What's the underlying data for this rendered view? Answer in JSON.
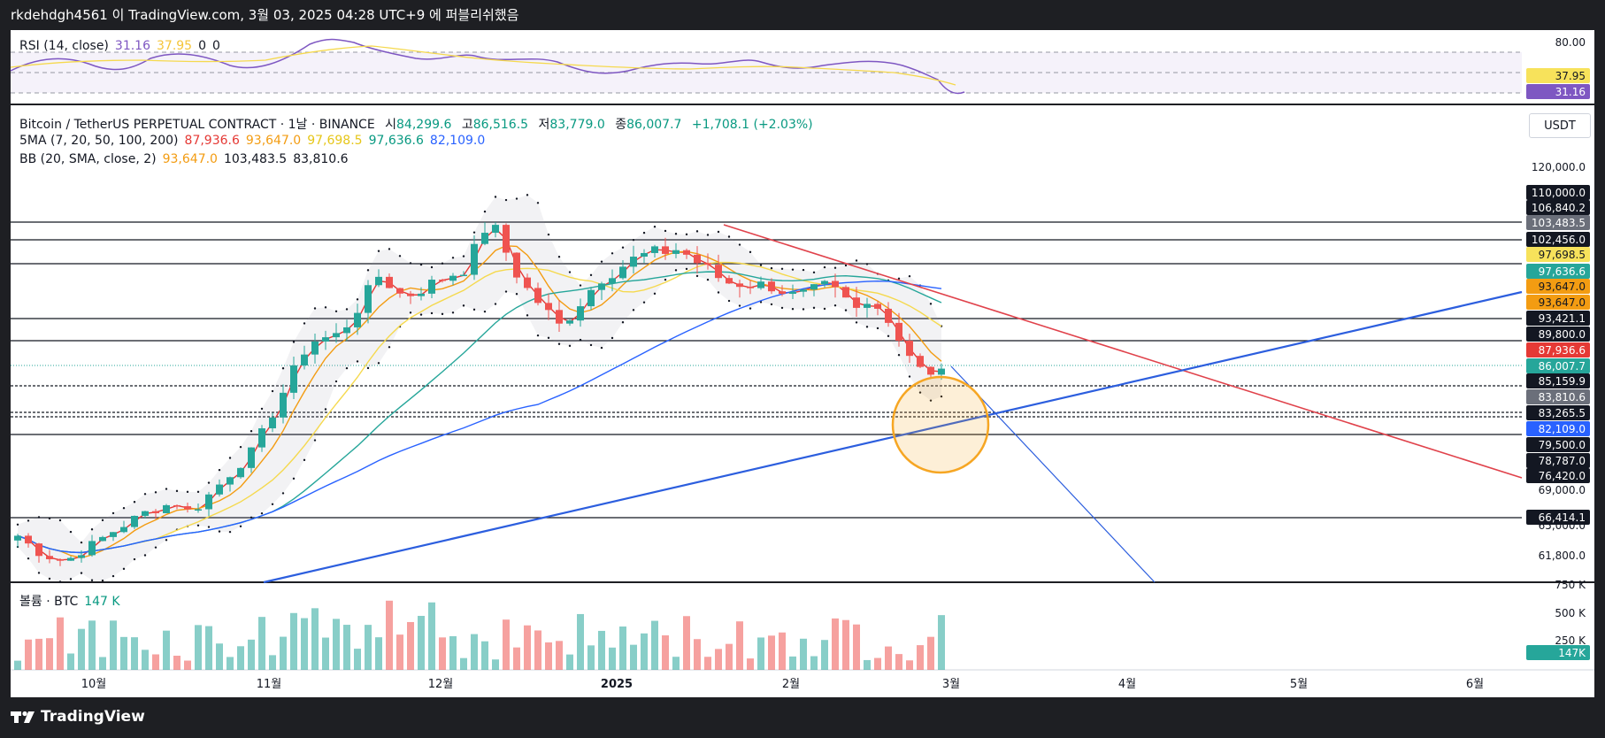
{
  "header": {
    "publish_text": "rkdehdgh4561 이 TradingView.com, 3월 03, 2025 04:28 UTC+9 에 퍼블리쉬했음"
  },
  "rsi_pane": {
    "label": "RSI (14, close)",
    "values": [
      "31.16",
      "37.95",
      "0",
      "0"
    ],
    "colors": [
      "#7e57c2",
      "#f7c948",
      "#131722",
      "#131722"
    ],
    "scale_labels": [
      "80.00"
    ],
    "badges": [
      {
        "text": "37.95",
        "bg": "#f7e25b",
        "fg": "#131722"
      },
      {
        "text": "31.16",
        "bg": "#7e57c2",
        "fg": "#ffffff"
      }
    ]
  },
  "main_pane": {
    "symbol_title": "Bitcoin / TetherUS PERPETUAL CONTRACT · 1날 · BINANCE",
    "ohlc": [
      {
        "k": "시",
        "v": "84,299.6"
      },
      {
        "k": "고",
        "v": "86,516.5"
      },
      {
        "k": "저",
        "v": "83,779.0"
      },
      {
        "k": "종",
        "v": "86,007.7"
      }
    ],
    "change": "+1,708.1 (+2.03%)",
    "sma_label": "5MA (7, 20, 50, 100, 200)",
    "sma_values": [
      "87,936.6",
      "93,647.0",
      "97,698.5",
      "97,636.6",
      "82,109.0"
    ],
    "sma_colors": [
      "#e53935",
      "#f39c12",
      "#f5d94e",
      "#26a69a",
      "#2962ff"
    ],
    "bb_label": "BB (20, SMA, close, 2)",
    "bb_values": [
      "93,647.0",
      "103,483.5",
      "83,810.6"
    ],
    "bb_colors": [
      "#f39c12",
      "#131722",
      "#131722"
    ],
    "currency_button": "USDT",
    "price_axis_plain": [
      "120,000.0",
      "69,000.0",
      "65,000.0",
      "61,800.0"
    ],
    "price_badges": [
      {
        "text": "110,000.0",
        "bg": "#131722",
        "fg": "#ffffff"
      },
      {
        "text": "106,840.2",
        "bg": "#131722",
        "fg": "#ffffff"
      },
      {
        "text": "103,483.5",
        "bg": "#6b6f7a",
        "fg": "#ffffff"
      },
      {
        "text": "102,456.0",
        "bg": "#131722",
        "fg": "#ffffff"
      },
      {
        "text": "97,698.5",
        "bg": "#f7e25b",
        "fg": "#131722"
      },
      {
        "text": "97,636.6",
        "bg": "#26a69a",
        "fg": "#ffffff"
      },
      {
        "text": "93,647.0",
        "bg": "#f39c12",
        "fg": "#131722"
      },
      {
        "text": "93,647.0",
        "bg": "#f39c12",
        "fg": "#131722"
      },
      {
        "text": "93,421.1",
        "bg": "#131722",
        "fg": "#ffffff"
      },
      {
        "text": "89,800.0",
        "bg": "#131722",
        "fg": "#ffffff"
      },
      {
        "text": "87,936.6",
        "bg": "#e53935",
        "fg": "#ffffff"
      },
      {
        "text": "86,007.7",
        "bg": "#26a69a",
        "fg": "#ffffff"
      },
      {
        "text": "85,159.9",
        "bg": "#131722",
        "fg": "#ffffff"
      },
      {
        "text": "83,810.6",
        "bg": "#6b6f7a",
        "fg": "#ffffff"
      },
      {
        "text": "83,265.5",
        "bg": "#131722",
        "fg": "#ffffff"
      },
      {
        "text": "82,109.0",
        "bg": "#2962ff",
        "fg": "#ffffff"
      },
      {
        "text": "79,500.0",
        "bg": "#131722",
        "fg": "#ffffff"
      },
      {
        "text": "78,787.0",
        "bg": "#131722",
        "fg": "#ffffff"
      },
      {
        "text": "76,420.0",
        "bg": "#131722",
        "fg": "#ffffff"
      },
      {
        "text": "66,414.1",
        "bg": "#131722",
        "fg": "#ffffff"
      }
    ]
  },
  "volume_pane": {
    "label": "볼륨 · BTC",
    "value": "147 K",
    "scale_labels": [
      "750 K",
      "500 K",
      "250 K"
    ],
    "badge": {
      "text": "147K",
      "bg": "#26a69a",
      "fg": "#ffffff"
    }
  },
  "time_axis": [
    "10월",
    "11월",
    "12월",
    "2025",
    "2월",
    "3월",
    "4월",
    "5월",
    "6월"
  ],
  "footer": {
    "brand": "TradingView"
  },
  "colors": {
    "up": "#26a69a",
    "down": "#ef5350",
    "trend_down": "#e0424b",
    "trend_up": "#2c5ede"
  }
}
